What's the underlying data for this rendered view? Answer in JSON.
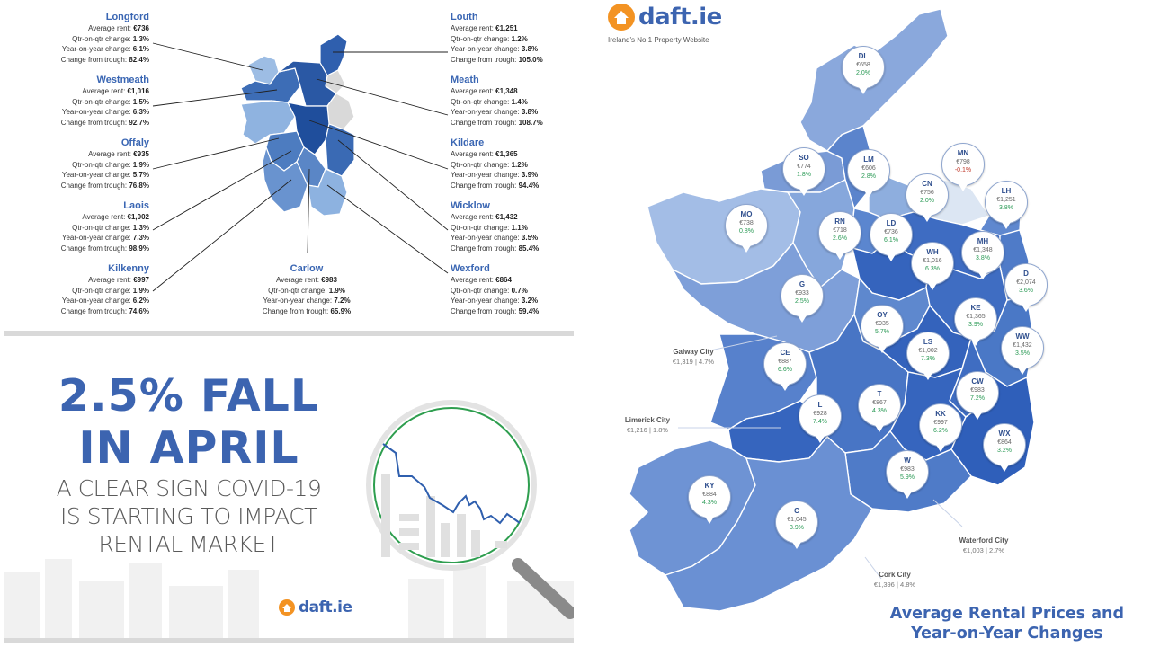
{
  "colors": {
    "brand_blue": "#3c64b0",
    "orange": "#f39323",
    "positive_green": "#2a9a55",
    "negative_red": "#c0392b"
  },
  "leinster_stats": {
    "longford": {
      "name": "Longford",
      "avg_label": "Average rent:",
      "avg": "€736",
      "qoq_label": "Qtr-on-qtr change:",
      "qoq": "1.3%",
      "yoy_label": "Year-on-year change:",
      "yoy": "6.1%",
      "trough_label": "Change from trough:",
      "trough": "82.4%"
    },
    "westmeath": {
      "name": "Westmeath",
      "avg_label": "Average rent:",
      "avg": "€1,016",
      "qoq_label": "Qtr-on-qtr change:",
      "qoq": "1.5%",
      "yoy_label": "Year-on-year change:",
      "yoy": "6.3%",
      "trough_label": "Change from trough:",
      "trough": "92.7%"
    },
    "offaly": {
      "name": "Offaly",
      "avg_label": "Average rent:",
      "avg": "€935",
      "qoq_label": "Qtr-on-qtr change:",
      "qoq": "1.9%",
      "yoy_label": "Year-on-year change:",
      "yoy": "5.7%",
      "trough_label": "Change from trough:",
      "trough": "76.8%"
    },
    "laois": {
      "name": "Laois",
      "avg_label": "Average rent:",
      "avg": "€1,002",
      "qoq_label": "Qtr-on-qtr change:",
      "qoq": "1.3%",
      "yoy_label": "Year-on-year change:",
      "yoy": "7.3%",
      "trough_label": "Change from trough:",
      "trough": "98.9%"
    },
    "kilkenny": {
      "name": "Kilkenny",
      "avg_label": "Average rent:",
      "avg": "€997",
      "qoq_label": "Qtr-on-qtr change:",
      "qoq": "1.9%",
      "yoy_label": "Year-on-year change:",
      "yoy": "6.2%",
      "trough_label": "Change from trough:",
      "trough": "74.6%"
    },
    "carlow": {
      "name": "Carlow",
      "avg_label": "Average rent:",
      "avg": "€983",
      "qoq_label": "Qtr-on-qtr change:",
      "qoq": "1.9%",
      "yoy_label": "Year-on-year change:",
      "yoy": "7.2%",
      "trough_label": "Change from trough:",
      "trough": "65.9%"
    },
    "louth": {
      "name": "Louth",
      "avg_label": "Average rent:",
      "avg": "€1,251",
      "qoq_label": "Qtr-on-qtr change:",
      "qoq": "1.2%",
      "yoy_label": "Year-on-year change:",
      "yoy": "3.8%",
      "trough_label": "Change from trough:",
      "trough": "105.0%"
    },
    "meath": {
      "name": "Meath",
      "avg_label": "Average rent:",
      "avg": "€1,348",
      "qoq_label": "Qtr-on-qtr change:",
      "qoq": "1.4%",
      "yoy_label": "Year-on-year change:",
      "yoy": "3.8%",
      "trough_label": "Change from trough:",
      "trough": "108.7%"
    },
    "kildare": {
      "name": "Kildare",
      "avg_label": "Average rent:",
      "avg": "€1,365",
      "qoq_label": "Qtr-on-qtr change:",
      "qoq": "1.2%",
      "yoy_label": "Year-on-year change:",
      "yoy": "3.9%",
      "trough_label": "Change from trough:",
      "trough": "94.4%"
    },
    "wicklow": {
      "name": "Wicklow",
      "avg_label": "Average rent:",
      "avg": "€1,432",
      "qoq_label": "Qtr-on-qtr change:",
      "qoq": "1.1%",
      "yoy_label": "Year-on-year change:",
      "yoy": "3.5%",
      "trough_label": "Change from trough:",
      "trough": "85.4%"
    },
    "wexford": {
      "name": "Wexford",
      "avg_label": "Average rent:",
      "avg": "€864",
      "qoq_label": "Qtr-on-qtr change:",
      "qoq": "0.7%",
      "yoy_label": "Year-on-year change:",
      "yoy": "3.2%",
      "trough_label": "Change from trough:",
      "trough": "59.4%"
    }
  },
  "headline": {
    "line1": "2.5% FALL",
    "line2": "IN APRIL",
    "sub1": "A CLEAR SIGN COVID-19",
    "sub2": "IS STARTING TO IMPACT",
    "sub3": "RENTAL MARKET"
  },
  "logo": {
    "text": "daft.ie",
    "tagline": "Ireland's No.1 Property Website"
  },
  "map_title": {
    "line1": "Average Rental Prices and",
    "line2": "Year-on-Year Changes"
  },
  "pins": {
    "dl": {
      "code": "DL",
      "rent": "€658",
      "change": "2.0%"
    },
    "so": {
      "code": "SO",
      "rent": "€774",
      "change": "1.8%"
    },
    "lm": {
      "code": "LM",
      "rent": "€606",
      "change": "2.8%"
    },
    "mn": {
      "code": "MN",
      "rent": "€798",
      "change": "-0.1%"
    },
    "cn": {
      "code": "CN",
      "rent": "€756",
      "change": "2.0%"
    },
    "lh": {
      "code": "LH",
      "rent": "€1,251",
      "change": "3.8%"
    },
    "mo": {
      "code": "MO",
      "rent": "€738",
      "change": "0.8%"
    },
    "rn": {
      "code": "RN",
      "rent": "€718",
      "change": "2.6%"
    },
    "ld": {
      "code": "LD",
      "rent": "€736",
      "change": "6.1%"
    },
    "mh": {
      "code": "MH",
      "rent": "€1,348",
      "change": "3.8%"
    },
    "wh": {
      "code": "WH",
      "rent": "€1,016",
      "change": "6.3%"
    },
    "d": {
      "code": "D",
      "rent": "€2,074",
      "change": "3.6%"
    },
    "g": {
      "code": "G",
      "rent": "€933",
      "change": "2.5%"
    },
    "oy": {
      "code": "OY",
      "rent": "€935",
      "change": "5.7%"
    },
    "ke": {
      "code": "KE",
      "rent": "€1,365",
      "change": "3.9%"
    },
    "ls": {
      "code": "LS",
      "rent": "€1,002",
      "change": "7.3%"
    },
    "ww": {
      "code": "WW",
      "rent": "€1,432",
      "change": "3.5%"
    },
    "ce": {
      "code": "CE",
      "rent": "€887",
      "change": "6.6%"
    },
    "cw": {
      "code": "CW",
      "rent": "€983",
      "change": "7.2%"
    },
    "t": {
      "code": "T",
      "rent": "€867",
      "change": "4.3%"
    },
    "l": {
      "code": "L",
      "rent": "€928",
      "change": "7.4%"
    },
    "kk": {
      "code": "KK",
      "rent": "€997",
      "change": "6.2%"
    },
    "wx": {
      "code": "WX",
      "rent": "€864",
      "change": "3.2%"
    },
    "w": {
      "code": "W",
      "rent": "€983",
      "change": "5.9%"
    },
    "ky": {
      "code": "KY",
      "rent": "€884",
      "change": "4.3%"
    },
    "c": {
      "code": "C",
      "rent": "€1,045",
      "change": "3.9%"
    }
  },
  "cities": {
    "galway": {
      "name": "Galway City",
      "rent": "€1,319",
      "sep": "|",
      "change": "4.7%"
    },
    "limerick": {
      "name": "Limerick City",
      "rent": "€1,216",
      "sep": "|",
      "change": "1.8%"
    },
    "waterford": {
      "name": "Waterford City",
      "rent": "€1,003",
      "sep": "|",
      "change": "2.7%"
    },
    "cork": {
      "name": "Cork City",
      "rent": "€1,396",
      "sep": "|",
      "change": "4.8%"
    }
  }
}
